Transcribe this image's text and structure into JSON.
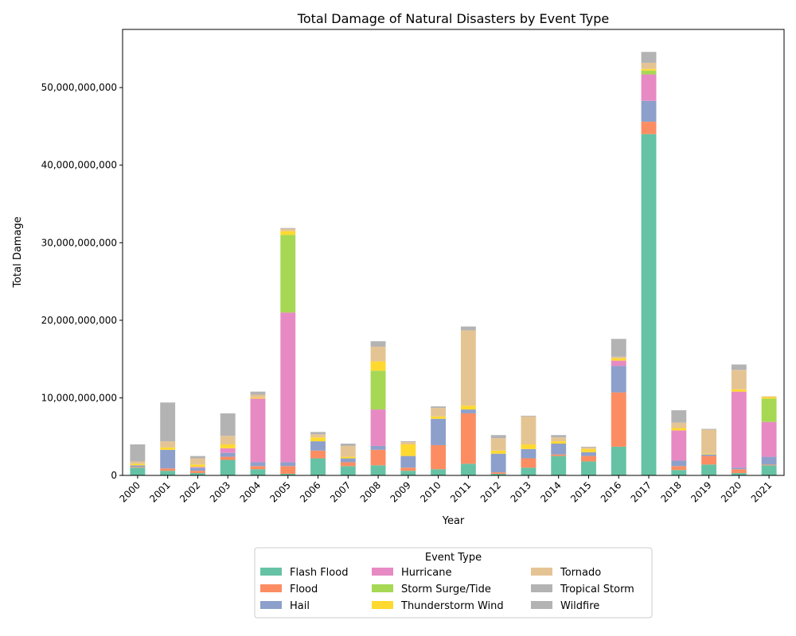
{
  "chart_data": {
    "type": "bar",
    "stacked": true,
    "title": "Total Damage of Natural Disasters by Event Type",
    "xlabel": "Year",
    "ylabel": "Total Damage",
    "ylim": [
      0,
      57500000000
    ],
    "yticks": [
      0,
      10000000000,
      20000000000,
      30000000000,
      40000000000,
      50000000000
    ],
    "ytick_labels": [
      "0",
      "10,000,000,000",
      "20,000,000,000",
      "30,000,000,000",
      "40,000,000,000",
      "50,000,000,000"
    ],
    "grid": false,
    "legend_title": "Event Type",
    "legend_position": "bottom-center",
    "categories": [
      "2000",
      "2001",
      "2002",
      "2003",
      "2004",
      "2005",
      "2006",
      "2007",
      "2008",
      "2009",
      "2010",
      "2011",
      "2012",
      "2013",
      "2014",
      "2015",
      "2016",
      "2017",
      "2018",
      "2019",
      "2020",
      "2021"
    ],
    "series": [
      {
        "name": "Flash Flood",
        "color": "#66c2a5",
        "values": [
          1000000000,
          600000000,
          300000000,
          2000000000,
          800000000,
          200000000,
          2200000000,
          1200000000,
          1300000000,
          600000000,
          800000000,
          1500000000,
          200000000,
          1000000000,
          2500000000,
          1800000000,
          3700000000,
          44000000000,
          700000000,
          1400000000,
          300000000,
          1300000000
        ]
      },
      {
        "name": "Flood",
        "color": "#fc8d62",
        "values": [
          100000000,
          300000000,
          300000000,
          400000000,
          400000000,
          1000000000,
          1000000000,
          500000000,
          2000000000,
          400000000,
          3100000000,
          6500000000,
          200000000,
          1200000000,
          200000000,
          700000000,
          7000000000,
          1600000000,
          500000000,
          1100000000,
          500000000,
          100000000
        ]
      },
      {
        "name": "Hail",
        "color": "#8da0cb",
        "values": [
          200000000,
          2400000000,
          400000000,
          500000000,
          500000000,
          500000000,
          1200000000,
          500000000,
          500000000,
          1500000000,
          3400000000,
          500000000,
          2400000000,
          1200000000,
          1400000000,
          500000000,
          3400000000,
          2700000000,
          700000000,
          200000000,
          200000000,
          1000000000
        ]
      },
      {
        "name": "Hurricane",
        "color": "#e78ac3",
        "values": [
          0,
          0,
          100000000,
          600000000,
          8200000000,
          19300000000,
          0,
          0,
          4700000000,
          0,
          0,
          0,
          0,
          0,
          0,
          0,
          700000000,
          3400000000,
          3900000000,
          0,
          9800000000,
          4500000000
        ]
      },
      {
        "name": "Storm Surge/Tide",
        "color": "#a6d854",
        "values": [
          0,
          0,
          0,
          0,
          0,
          10000000000,
          0,
          0,
          5000000000,
          0,
          0,
          0,
          0,
          0,
          0,
          0,
          0,
          500000000,
          0,
          0,
          0,
          3000000000
        ]
      },
      {
        "name": "Thunderstorm Wind",
        "color": "#ffd92f",
        "values": [
          200000000,
          300000000,
          300000000,
          500000000,
          100000000,
          500000000,
          500000000,
          200000000,
          1200000000,
          1500000000,
          300000000,
          500000000,
          400000000,
          600000000,
          300000000,
          400000000,
          300000000,
          200000000,
          300000000,
          100000000,
          300000000,
          200000000
        ]
      },
      {
        "name": "Tornado",
        "color": "#e5c494",
        "values": [
          300000000,
          800000000,
          800000000,
          1100000000,
          400000000,
          300000000,
          400000000,
          1400000000,
          1900000000,
          300000000,
          1100000000,
          9700000000,
          1600000000,
          3600000000,
          500000000,
          200000000,
          200000000,
          800000000,
          700000000,
          3100000000,
          2500000000,
          100000000
        ]
      },
      {
        "name": "Tropical Storm",
        "color": "#b3b3b3",
        "values": [
          0,
          0,
          0,
          0,
          0,
          0,
          0,
          0,
          0,
          0,
          0,
          0,
          0,
          0,
          0,
          0,
          0,
          0,
          0,
          0,
          0,
          0
        ]
      },
      {
        "name": "Wildfire",
        "color": "#b3b3b3",
        "values": [
          2200000000,
          5000000000,
          300000000,
          2900000000,
          400000000,
          100000000,
          300000000,
          300000000,
          700000000,
          100000000,
          200000000,
          500000000,
          400000000,
          100000000,
          300000000,
          100000000,
          2300000000,
          1400000000,
          1600000000,
          100000000,
          700000000,
          0
        ]
      }
    ]
  }
}
